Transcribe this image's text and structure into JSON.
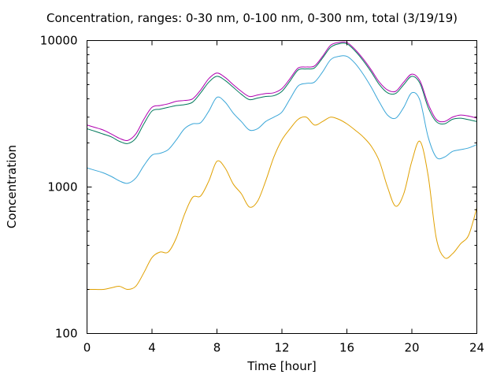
{
  "chart_data": {
    "type": "line",
    "title": "Concentration, ranges: 0-30 nm, 0-100 nm, 0-300 nm, total (3/19/19)",
    "xlabel": "Time [hour]",
    "ylabel": "Concentration",
    "xlim": [
      0,
      24
    ],
    "ylim": [
      100,
      10000
    ],
    "yscale": "log",
    "x_ticks": [
      0,
      4,
      8,
      12,
      16,
      20,
      24
    ],
    "y_ticks": [
      100,
      1000,
      10000
    ],
    "grid": false,
    "legend": "none",
    "x": [
      0,
      0.5,
      1,
      1.5,
      2,
      2.5,
      3,
      3.5,
      4,
      4.5,
      5,
      5.5,
      6,
      6.5,
      7,
      7.5,
      8,
      8.5,
      9,
      9.5,
      10,
      10.5,
      11,
      11.5,
      12,
      12.5,
      13,
      13.5,
      14,
      14.5,
      15,
      15.5,
      16,
      16.5,
      17,
      17.5,
      18,
      18.5,
      19,
      19.5,
      20,
      20.5,
      21,
      21.5,
      22,
      22.5,
      23,
      23.5,
      24
    ],
    "series": [
      {
        "color": "#b000b0",
        "values": [
          2650,
          2550,
          2450,
          2300,
          2150,
          2080,
          2300,
          2900,
          3500,
          3600,
          3700,
          3850,
          3900,
          4000,
          4600,
          5500,
          6000,
          5600,
          5000,
          4500,
          4150,
          4250,
          4350,
          4400,
          4700,
          5500,
          6500,
          6600,
          6700,
          7800,
          9300,
          9700,
          9700,
          8700,
          7500,
          6300,
          5200,
          4600,
          4500,
          5200,
          5900,
          5300,
          3700,
          2900,
          2800,
          3000,
          3100,
          3050,
          2950
        ]
      },
      {
        "color": "#00785a",
        "values": [
          2500,
          2400,
          2300,
          2200,
          2050,
          1980,
          2150,
          2700,
          3300,
          3400,
          3500,
          3600,
          3650,
          3800,
          4400,
          5200,
          5700,
          5350,
          4800,
          4300,
          3950,
          4050,
          4150,
          4200,
          4500,
          5300,
          6300,
          6400,
          6500,
          7600,
          9000,
          9500,
          9500,
          8500,
          7300,
          6100,
          5000,
          4400,
          4350,
          5000,
          5700,
          5100,
          3500,
          2800,
          2700,
          2900,
          2950,
          2880,
          2800
        ]
      },
      {
        "color": "#3aa6d8",
        "values": [
          1350,
          1300,
          1250,
          1180,
          1100,
          1060,
          1150,
          1400,
          1650,
          1700,
          1800,
          2100,
          2500,
          2700,
          2750,
          3300,
          4100,
          3800,
          3200,
          2800,
          2450,
          2500,
          2800,
          3000,
          3250,
          4000,
          4900,
          5100,
          5200,
          6100,
          7400,
          7800,
          7800,
          7000,
          5900,
          4800,
          3800,
          3100,
          2950,
          3500,
          4400,
          3900,
          2200,
          1600,
          1600,
          1750,
          1800,
          1850,
          1950
        ]
      },
      {
        "color": "#e0a000",
        "values": [
          200,
          200,
          200,
          205,
          210,
          200,
          210,
          260,
          330,
          360,
          360,
          450,
          650,
          850,
          870,
          1100,
          1500,
          1350,
          1050,
          900,
          730,
          800,
          1100,
          1600,
          2100,
          2500,
          2900,
          3000,
          2650,
          2800,
          3000,
          2900,
          2700,
          2450,
          2200,
          1900,
          1500,
          1000,
          740,
          900,
          1500,
          2050,
          1200,
          450,
          330,
          350,
          410,
          470,
          720
        ]
      }
    ]
  }
}
